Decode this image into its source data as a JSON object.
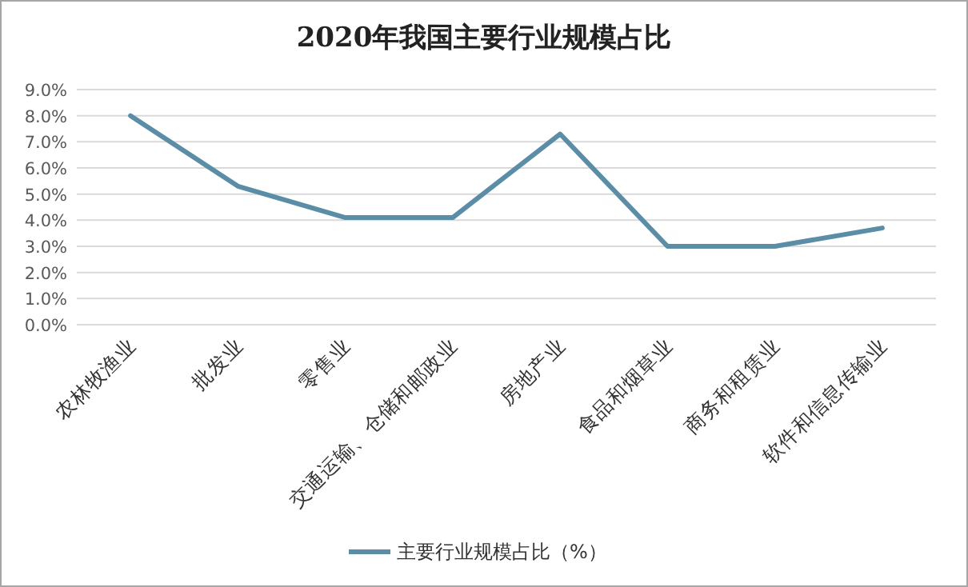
{
  "chart_data": {
    "type": "line",
    "title": "2020年我国主要行业规模占比",
    "categories": [
      "农林牧渔业",
      "批发业",
      "零售业",
      "交通运输、仓储和邮政业",
      "房地产业",
      "食品和烟草业",
      "商务和租赁业",
      "软件和信息传输业"
    ],
    "series": [
      {
        "name": "主要行业规模占比（%）",
        "color": "#5b8ea6",
        "values": [
          8.0,
          5.3,
          4.1,
          4.1,
          7.3,
          3.0,
          3.0,
          3.7
        ]
      }
    ],
    "ylim": [
      0,
      9
    ],
    "yticks": [
      {
        "value": 0,
        "label": "0.0%"
      },
      {
        "value": 1,
        "label": "1.0%"
      },
      {
        "value": 2,
        "label": "2.0%"
      },
      {
        "value": 3,
        "label": "3.0%"
      },
      {
        "value": 4,
        "label": "4.0%"
      },
      {
        "value": 5,
        "label": "5.0%"
      },
      {
        "value": 6,
        "label": "6.0%"
      },
      {
        "value": 7,
        "label": "7.0%"
      },
      {
        "value": 8,
        "label": "8.0%"
      },
      {
        "value": 9,
        "label": "9.0%"
      }
    ],
    "grid": "y",
    "legend": "bottom",
    "marker": "none",
    "line_style": "solid"
  }
}
